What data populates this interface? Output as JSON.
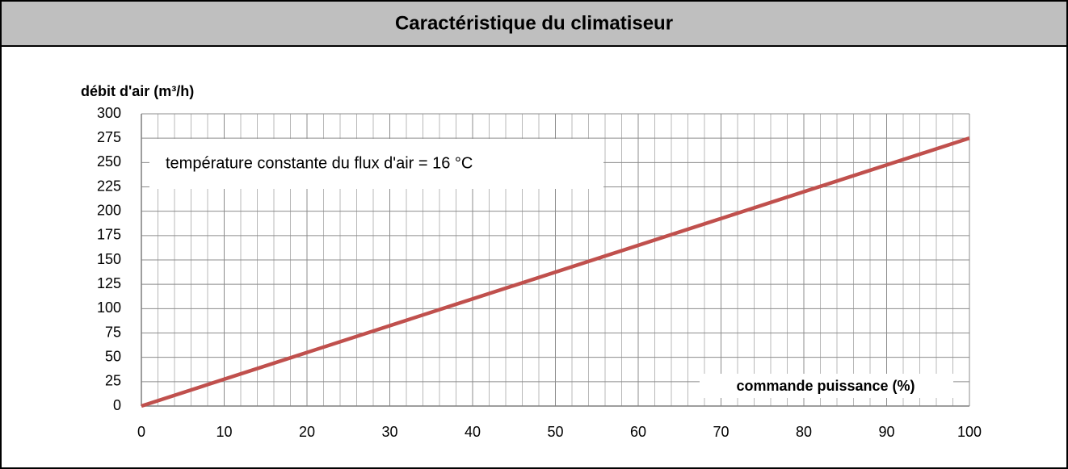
{
  "chart_data": {
    "type": "line",
    "title": "Caractéristique du climatiseur",
    "y_label": "débit d'air (m³/h)",
    "x_label": "commande puissance (%)",
    "annotation": "température constante du flux d'air = 16 °C",
    "x": [
      0,
      100
    ],
    "series": [
      {
        "name": "débit d'air",
        "color": "#c0504d",
        "values": [
          0,
          275
        ]
      }
    ],
    "xlim": [
      0,
      100
    ],
    "xticks": [
      0,
      10,
      20,
      30,
      40,
      50,
      60,
      70,
      80,
      90,
      100
    ],
    "ylim": [
      0,
      300
    ],
    "yticks": [
      0,
      25,
      50,
      75,
      100,
      125,
      150,
      175,
      200,
      225,
      250,
      275,
      300
    ],
    "grid": true,
    "x_minor_grid_step": 2
  }
}
